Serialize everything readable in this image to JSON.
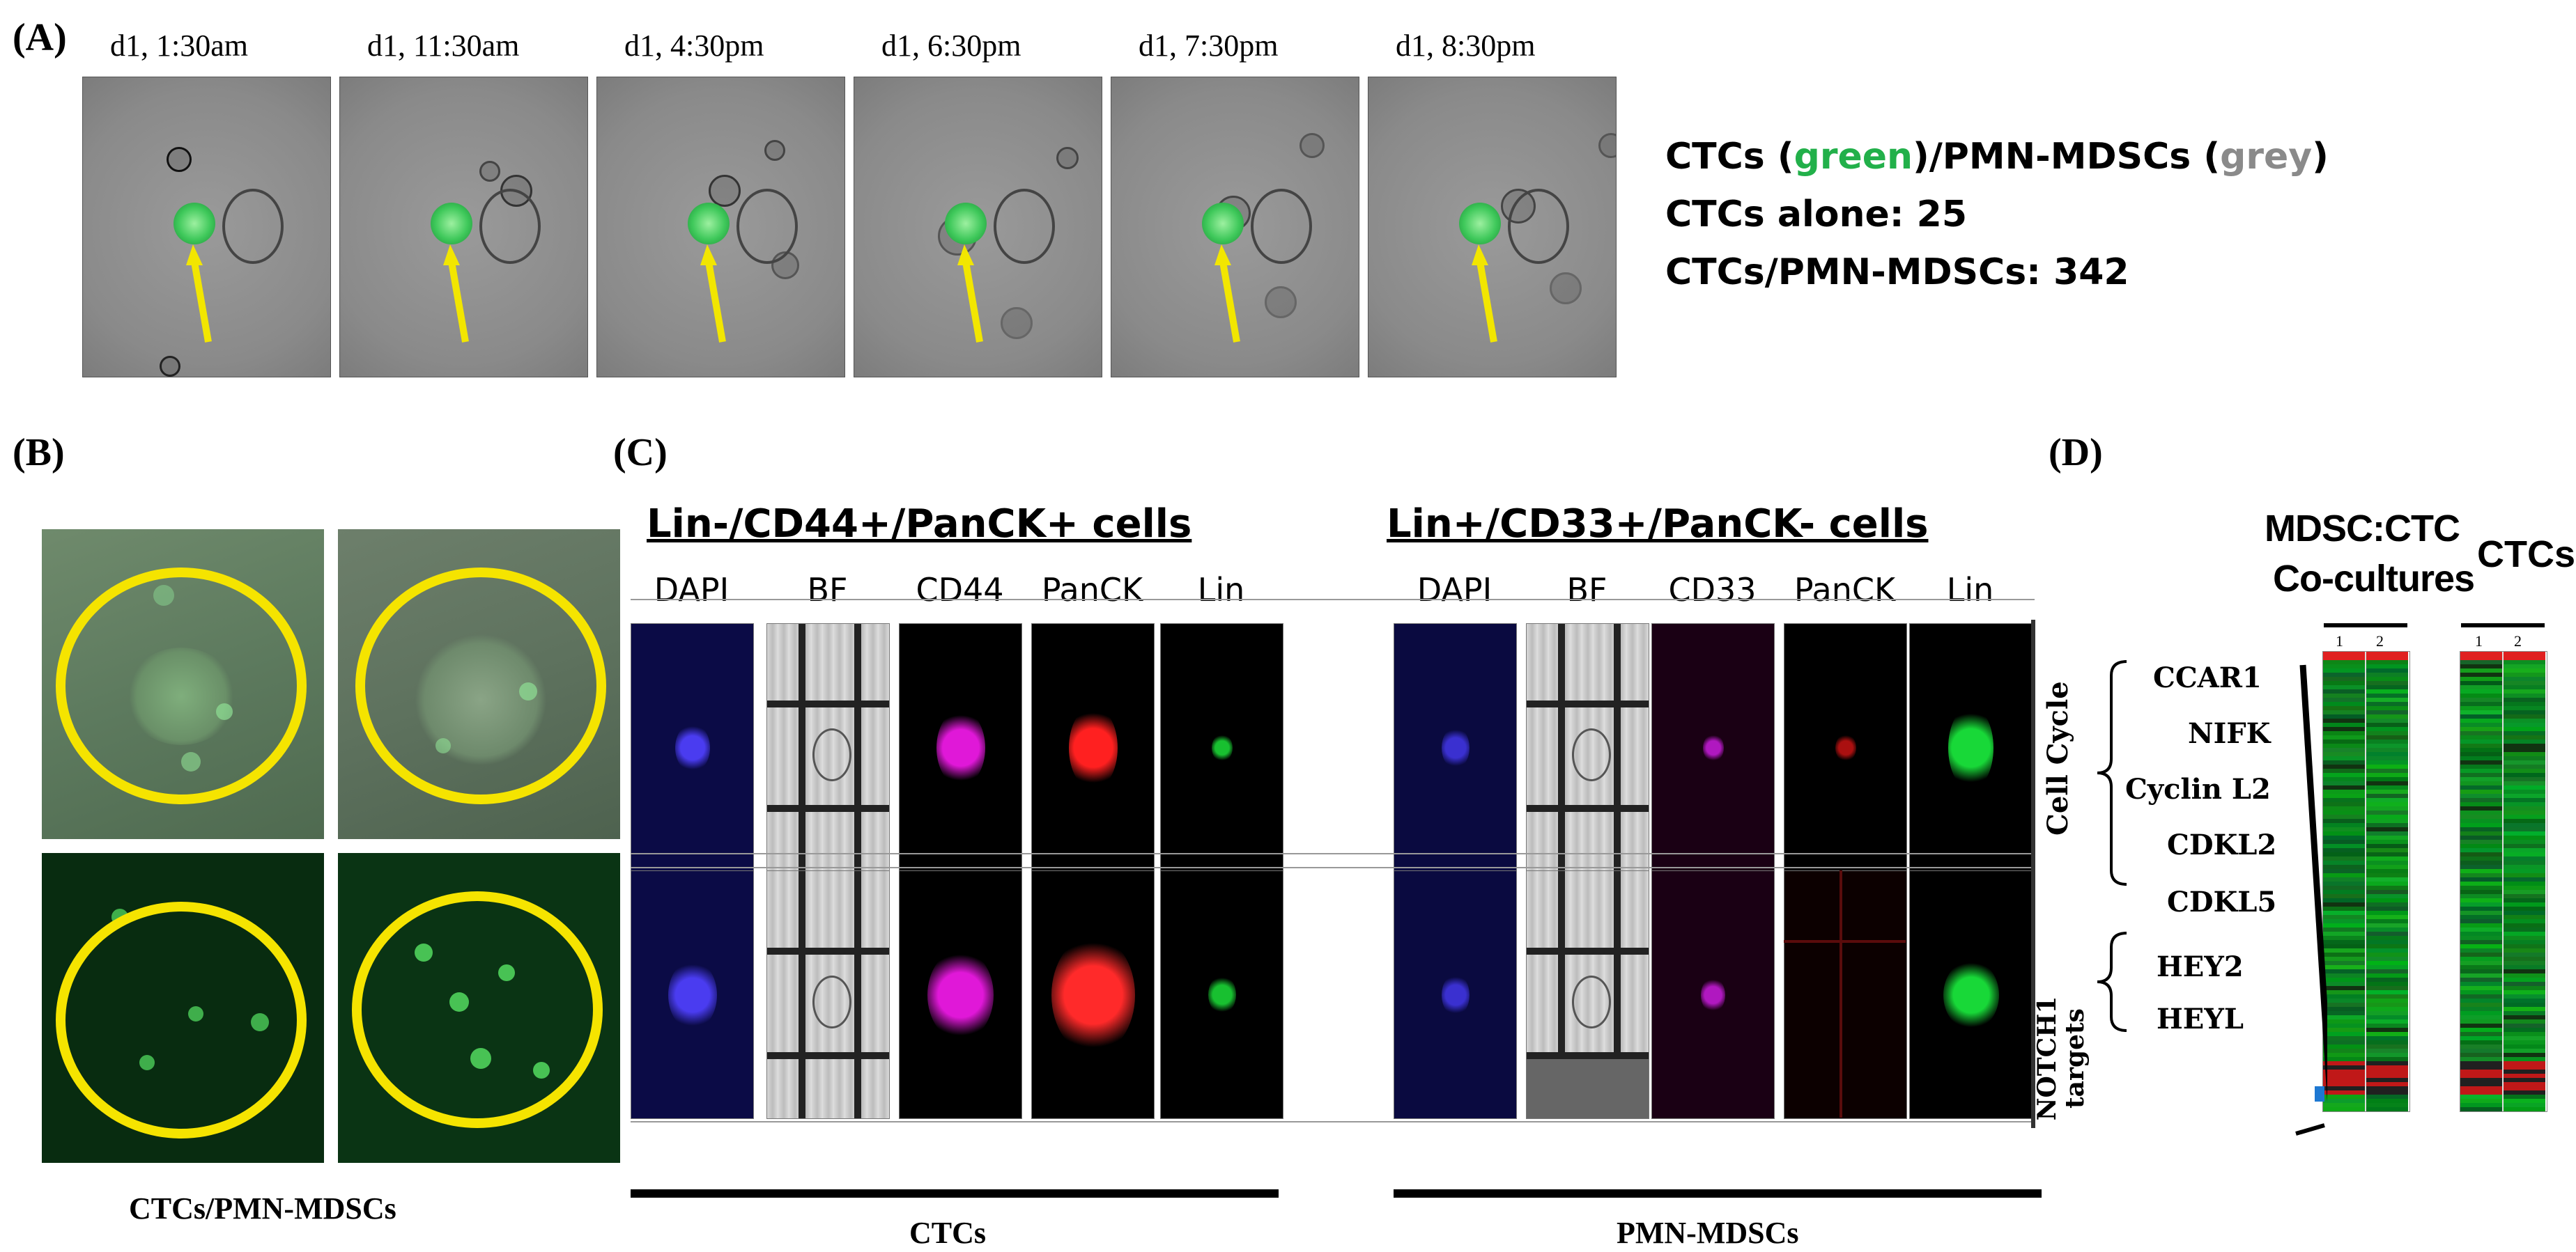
{
  "panelA": {
    "label": "(A)",
    "timepoints": [
      "d1, 1:30am",
      "d1, 11:30am",
      "d1, 4:30pm",
      "d1, 6:30pm",
      "d1, 7:30pm",
      "d1, 8:30pm"
    ],
    "legend_line1_a": "CTCs (",
    "legend_line1_green": "green",
    "legend_line1_b": ")/PMN-MDSCs (",
    "legend_line1_grey": "grey",
    "legend_line1_c": ")",
    "legend_line2": "CTCs alone: 25",
    "legend_line3": "CTCs/PMN-MDSCs: 342"
  },
  "panelB": {
    "label": "(B)",
    "caption": "CTCs/PMN-MDSCs"
  },
  "panelC": {
    "label": "(C)",
    "left_title": "Lin-/CD44+/PanCK+ cells",
    "right_title": "Lin+/CD33+/PanCK- cells",
    "left_channels": [
      "DAPI",
      "BF",
      "CD44",
      "PanCK",
      "Lin"
    ],
    "right_channels": [
      "DAPI",
      "BF",
      "CD33",
      "PanCK",
      "Lin"
    ],
    "left_caption": "CTCs",
    "right_caption": "PMN-MDSCs"
  },
  "panelD": {
    "label": "(D)",
    "title_left_1": "MDSC:CTC",
    "title_left_2": "Co-cultures",
    "title_right": "CTCs",
    "lane_1": "1",
    "lane_2": "2",
    "group_cell_cycle": "Cell Cycle",
    "group_notch": "NOTCH1 targets",
    "genes_cell_cycle": [
      "CCAR1",
      "NIFK",
      "Cyclin L2",
      "CDKL2",
      "CDKL5"
    ],
    "genes_notch": [
      "HEY2",
      "HEYL"
    ]
  },
  "colors": {
    "gfp_green": "#22c55e",
    "arrow_yellow": "#f2e600",
    "circle_yellow": "#f5e400",
    "heatmap_green": "#1e9c3a",
    "heatmap_red": "#e02020"
  }
}
